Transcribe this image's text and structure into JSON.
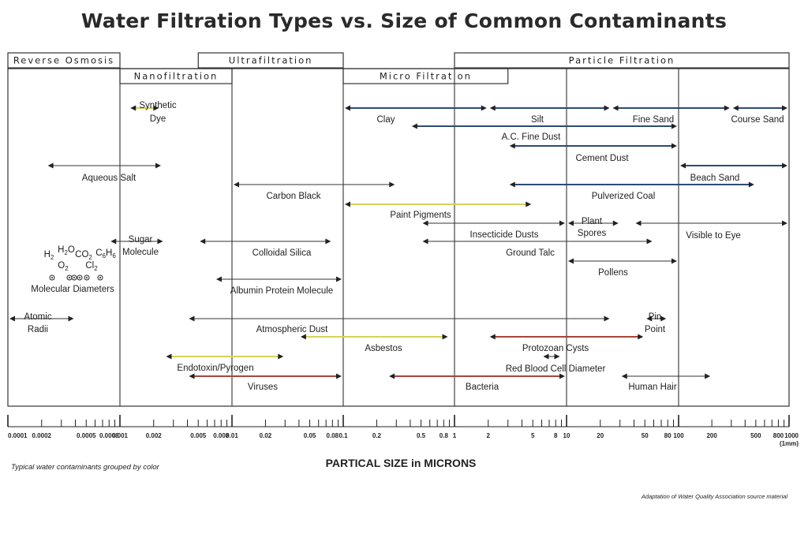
{
  "title": "Water Filtration Types vs. Size of Common Contaminants",
  "footer": {
    "note": "Typical water contaminants grouped by color",
    "source": "Adaptation of Water Quality Association source material"
  },
  "colors": {
    "blue": "#2c4a78",
    "yellow": "#d6d25a",
    "red": "#a8453a",
    "gray": "#333333"
  },
  "chart_data": {
    "type": "range",
    "xlabel": "PARTICAL SIZE in MICRONS",
    "x_scale": "log",
    "xlim": [
      0.0001,
      1000
    ],
    "ticks": [
      {
        "value": 0.0001,
        "label": "0.0001"
      },
      {
        "value": 0.0002,
        "label": "0.0002"
      },
      {
        "value": 0.0005,
        "label": "0.0005"
      },
      {
        "value": 0.0008,
        "label": "0.0008"
      },
      {
        "value": 0.001,
        "label": "0.001"
      },
      {
        "value": 0.002,
        "label": "0.002"
      },
      {
        "value": 0.005,
        "label": "0.005"
      },
      {
        "value": 0.008,
        "label": "0.008"
      },
      {
        "value": 0.01,
        "label": "0.01"
      },
      {
        "value": 0.02,
        "label": "0.02"
      },
      {
        "value": 0.05,
        "label": "0.05"
      },
      {
        "value": 0.08,
        "label": "0.08"
      },
      {
        "value": 0.1,
        "label": "0.1"
      },
      {
        "value": 0.2,
        "label": "0.2"
      },
      {
        "value": 0.5,
        "label": "0.5"
      },
      {
        "value": 0.8,
        "label": "0.8"
      },
      {
        "value": 1,
        "label": "1"
      },
      {
        "value": 2,
        "label": "2"
      },
      {
        "value": 5,
        "label": "5"
      },
      {
        "value": 8,
        "label": "8"
      },
      {
        "value": 10,
        "label": "10"
      },
      {
        "value": 20,
        "label": "20"
      },
      {
        "value": 50,
        "label": "50"
      },
      {
        "value": 80,
        "label": "80"
      },
      {
        "value": 100,
        "label": "100"
      },
      {
        "value": 200,
        "label": "200"
      },
      {
        "value": 500,
        "label": "500"
      },
      {
        "value": 800,
        "label": "800"
      },
      {
        "value": 1000,
        "label": "1000"
      }
    ],
    "tick_note": "(1mm)",
    "processes": [
      {
        "name": "Reverse Osmosis",
        "min": 0.0001,
        "max": 0.001
      },
      {
        "name": "Nanofiltration",
        "min": 0.001,
        "max": 0.01
      },
      {
        "name": "Ultrafiltration",
        "min": 0.005,
        "max": 0.1
      },
      {
        "name": "Micro Filtration",
        "min": 0.1,
        "max": 3
      },
      {
        "name": "Particle Filtration",
        "min": 1,
        "max": 1000
      }
    ],
    "items": [
      {
        "name": "Synthetic Dye",
        "min": 0.0012,
        "max": 0.0023,
        "color": "yellow"
      },
      {
        "name": "Clay",
        "min": 0.1,
        "max": 2,
        "color": "blue"
      },
      {
        "name": "Silt",
        "min": 2,
        "max": 25,
        "color": "blue"
      },
      {
        "name": "Fine Sand",
        "min": 25,
        "max": 300,
        "color": "blue"
      },
      {
        "name": "Course Sand",
        "min": 300,
        "max": 1000,
        "color": "blue"
      },
      {
        "name": "A.C. Fine Dust",
        "min": 0.4,
        "max": 100,
        "color": "blue"
      },
      {
        "name": "Cement Dust",
        "min": 3,
        "max": 100,
        "color": "blue"
      },
      {
        "name": "Aqueous Salt",
        "min": 0.00022,
        "max": 0.0024,
        "color": "gray"
      },
      {
        "name": "Beach Sand",
        "min": 100,
        "max": 1000,
        "color": "blue"
      },
      {
        "name": "Carbon Black",
        "min": 0.01,
        "max": 0.3,
        "color": "gray"
      },
      {
        "name": "Pulverized Coal",
        "min": 3,
        "max": 500,
        "color": "blue"
      },
      {
        "name": "Paint Pigments",
        "min": 0.1,
        "max": 5,
        "color": "yellow"
      },
      {
        "name": "Plant Spores",
        "min": 10,
        "max": 30,
        "color": "gray"
      },
      {
        "name": "Insecticide Dusts",
        "min": 0.5,
        "max": 10,
        "color": "gray"
      },
      {
        "name": "Visible to Eye",
        "min": 40,
        "max": 1000,
        "color": "gray"
      },
      {
        "name": "Sugar Molecule",
        "min": 0.0008,
        "max": 0.0025,
        "color": "gray"
      },
      {
        "name": "Colloidal Silica",
        "min": 0.005,
        "max": 0.08,
        "color": "gray"
      },
      {
        "name": "Ground Talc",
        "min": 0.5,
        "max": 60,
        "color": "gray"
      },
      {
        "name": "Pollens",
        "min": 10,
        "max": 100,
        "color": "gray"
      },
      {
        "name": "Albumin Protein Molecule",
        "min": 0.007,
        "max": 0.1,
        "color": "gray"
      },
      {
        "name": "Atomic Radii",
        "min": 0.0001,
        "max": 0.0004,
        "color": "gray"
      },
      {
        "name": "Atmospheric Dust",
        "min": 0.004,
        "max": 25,
        "color": "gray"
      },
      {
        "name": "Pin Point",
        "min": 50,
        "max": 80,
        "color": "gray"
      },
      {
        "name": "Asbestos",
        "min": 0.04,
        "max": 0.9,
        "color": "yellow"
      },
      {
        "name": "Protozoan Cysts",
        "min": 2,
        "max": 50,
        "color": "red"
      },
      {
        "name": "Endotoxin/Pyrogen",
        "min": 0.0025,
        "max": 0.03,
        "color": "yellow"
      },
      {
        "name": "Red Blood Cell Diameter",
        "min": 6,
        "max": 9,
        "color": "gray"
      },
      {
        "name": "Viruses",
        "min": 0.004,
        "max": 0.1,
        "color": "red"
      },
      {
        "name": "Bacteria",
        "min": 0.25,
        "max": 10,
        "color": "red"
      },
      {
        "name": "Human Hair",
        "min": 30,
        "max": 200,
        "color": "gray"
      }
    ],
    "molecular_diagram": {
      "label": "Molecular Diameters",
      "formulas": [
        "H2",
        "H2O",
        "O2",
        "CO2",
        "Cl2",
        "C6H6"
      ]
    }
  }
}
